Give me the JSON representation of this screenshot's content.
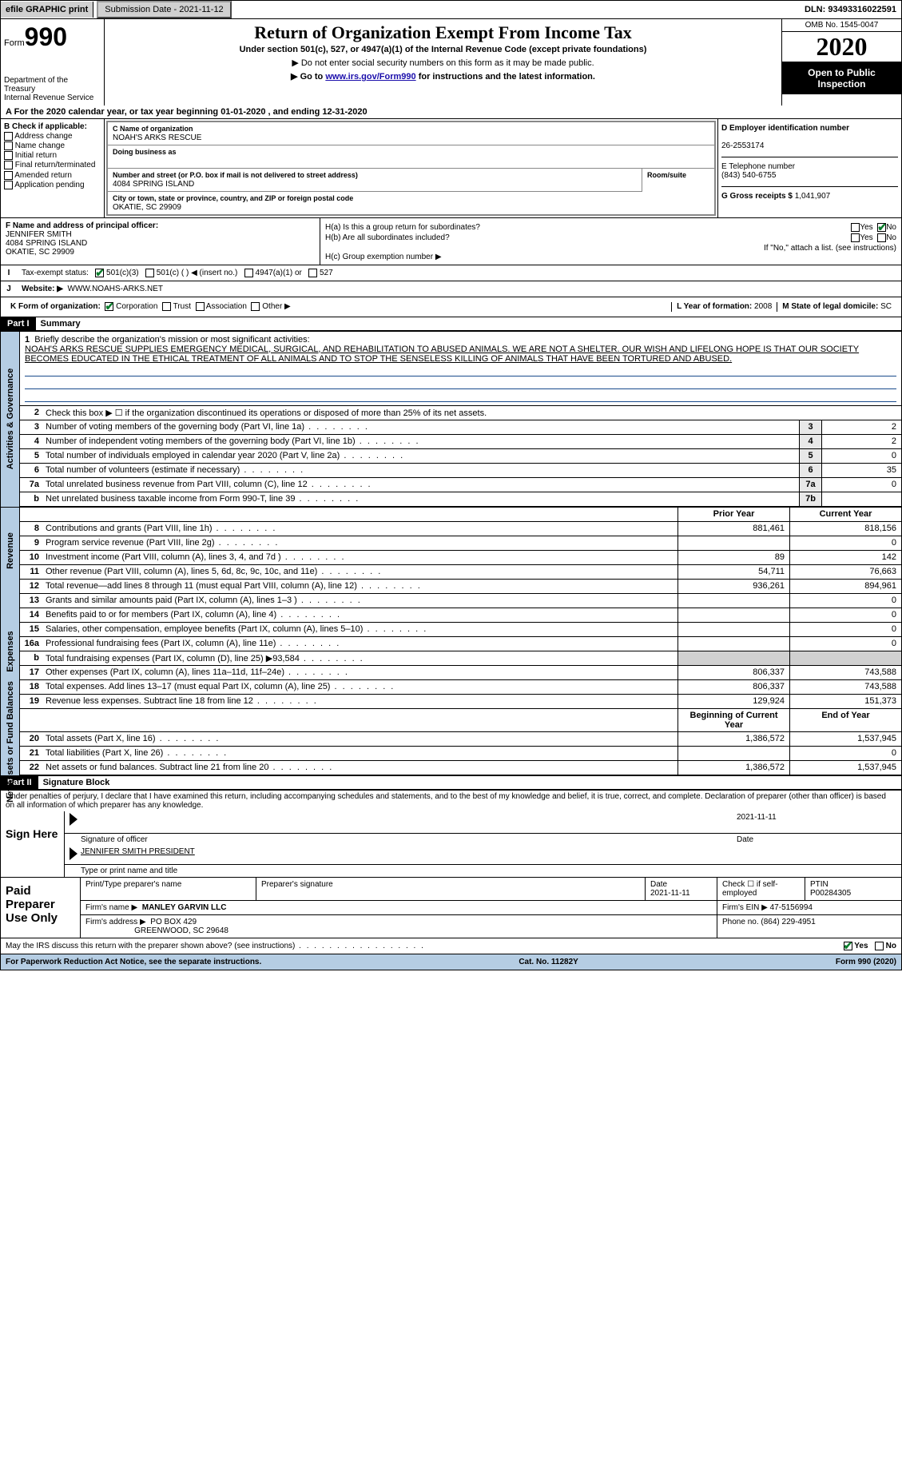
{
  "top_bar": {
    "efile": "efile GRAPHIC print",
    "submission_label": "Submission Date - 2021-11-12",
    "dln": "DLN: 93493316022591"
  },
  "header": {
    "form_word": "Form",
    "form_num": "990",
    "title": "Return of Organization Exempt From Income Tax",
    "subtitle": "Under section 501(c), 527, or 4947(a)(1) of the Internal Revenue Code (except private foundations)",
    "notice1": "▶ Do not enter social security numbers on this form as it may be made public.",
    "notice2_pre": "▶ Go to ",
    "notice2_link": "www.irs.gov/Form990",
    "notice2_post": " for instructions and the latest information.",
    "dept1": "Department of the Treasury",
    "dept2": "Internal Revenue Service",
    "omb": "OMB No. 1545-0047",
    "year": "2020",
    "open_public": "Open to Public Inspection"
  },
  "row_a": "A For the 2020 calendar year, or tax year beginning 01-01-2020   , and ending 12-31-2020",
  "section_b": {
    "label": "B Check if applicable:",
    "items": [
      "Address change",
      "Name change",
      "Initial return",
      "Final return/terminated",
      "Amended return",
      "Application pending"
    ]
  },
  "section_c": {
    "label": "C Name of organization",
    "org_name": "NOAH'S ARKS RESCUE",
    "dba_label": "Doing business as",
    "addr_label": "Number and street (or P.O. box if mail is not delivered to street address)",
    "addr": "4084 SPRING ISLAND",
    "room_label": "Room/suite",
    "city_label": "City or town, state or province, country, and ZIP or foreign postal code",
    "city": "OKATIE, SC  29909"
  },
  "section_d": {
    "label": "D Employer identification number",
    "ein": "26-2553174",
    "e_label": "E Telephone number",
    "phone": "(843) 540-6755",
    "g_label": "G Gross receipts $",
    "g_val": "1,041,907"
  },
  "section_f": {
    "label": "F Name and address of principal officer:",
    "name": "JENNIFER SMITH",
    "addr1": "4084 SPRING ISLAND",
    "addr2": "OKATIE, SC  29909"
  },
  "section_h": {
    "ha_label": "H(a)  Is this a group return for subordinates?",
    "hb_label": "H(b)  Are all subordinates included?",
    "hb_note": "If \"No,\" attach a list. (see instructions)",
    "hc_label": "H(c)  Group exemption number ▶",
    "yes": "Yes",
    "no": "No"
  },
  "row_i": {
    "label": "Tax-exempt status:",
    "opts": [
      "501(c)(3)",
      "501(c) (   ) ◀ (insert no.)",
      "4947(a)(1) or",
      "527"
    ]
  },
  "row_j": {
    "label": "Website: ▶",
    "val": "WWW.NOAHS-ARKS.NET"
  },
  "row_k": {
    "label": "K Form of organization:",
    "opts": [
      "Corporation",
      "Trust",
      "Association",
      "Other ▶"
    ]
  },
  "row_l": {
    "label": "L Year of formation:",
    "val": "2008"
  },
  "row_m": {
    "label": "M State of legal domicile:",
    "val": "SC"
  },
  "part1": {
    "num": "Part I",
    "title": "Summary"
  },
  "mission": {
    "num": "1",
    "label": "Briefly describe the organization's mission or most significant activities:",
    "text": "NOAH'S ARKS RESCUE SUPPLIES EMERGENCY MEDICAL, SURGICAL, AND REHABILITATION TO ABUSED ANIMALS. WE ARE NOT A SHELTER. OUR WISH AND LIFELONG HOPE IS THAT OUR SOCIETY BECOMES EDUCATED IN THE ETHICAL TREATMENT OF ALL ANIMALS AND TO STOP THE SENSELESS KILLING OF ANIMALS THAT HAVE BEEN TORTURED AND ABUSED."
  },
  "gov_lines": [
    {
      "n": "2",
      "t": "Check this box ▶ ☐ if the organization discontinued its operations or disposed of more than 25% of its net assets.",
      "box": "",
      "v": ""
    },
    {
      "n": "3",
      "t": "Number of voting members of the governing body (Part VI, line 1a)",
      "box": "3",
      "v": "2"
    },
    {
      "n": "4",
      "t": "Number of independent voting members of the governing body (Part VI, line 1b)",
      "box": "4",
      "v": "2"
    },
    {
      "n": "5",
      "t": "Total number of individuals employed in calendar year 2020 (Part V, line 2a)",
      "box": "5",
      "v": "0"
    },
    {
      "n": "6",
      "t": "Total number of volunteers (estimate if necessary)",
      "box": "6",
      "v": "35"
    },
    {
      "n": "7a",
      "t": "Total unrelated business revenue from Part VIII, column (C), line 12",
      "box": "7a",
      "v": "0"
    },
    {
      "n": "b",
      "t": "Net unrelated business taxable income from Form 990-T, line 39",
      "box": "7b",
      "v": ""
    }
  ],
  "rev_hdr": {
    "prior": "Prior Year",
    "curr": "Current Year"
  },
  "rev_lines": [
    {
      "n": "8",
      "t": "Contributions and grants (Part VIII, line 1h)",
      "p": "881,461",
      "c": "818,156"
    },
    {
      "n": "9",
      "t": "Program service revenue (Part VIII, line 2g)",
      "p": "",
      "c": "0"
    },
    {
      "n": "10",
      "t": "Investment income (Part VIII, column (A), lines 3, 4, and 7d )",
      "p": "89",
      "c": "142"
    },
    {
      "n": "11",
      "t": "Other revenue (Part VIII, column (A), lines 5, 6d, 8c, 9c, 10c, and 11e)",
      "p": "54,711",
      "c": "76,663"
    },
    {
      "n": "12",
      "t": "Total revenue—add lines 8 through 11 (must equal Part VIII, column (A), line 12)",
      "p": "936,261",
      "c": "894,961"
    }
  ],
  "exp_lines": [
    {
      "n": "13",
      "t": "Grants and similar amounts paid (Part IX, column (A), lines 1–3 )",
      "p": "",
      "c": "0"
    },
    {
      "n": "14",
      "t": "Benefits paid to or for members (Part IX, column (A), line 4)",
      "p": "",
      "c": "0"
    },
    {
      "n": "15",
      "t": "Salaries, other compensation, employee benefits (Part IX, column (A), lines 5–10)",
      "p": "",
      "c": "0"
    },
    {
      "n": "16a",
      "t": "Professional fundraising fees (Part IX, column (A), line 11e)",
      "p": "",
      "c": "0"
    },
    {
      "n": "b",
      "t": "Total fundraising expenses (Part IX, column (D), line 25) ▶93,584",
      "p": "GREY",
      "c": "GREY"
    },
    {
      "n": "17",
      "t": "Other expenses (Part IX, column (A), lines 11a–11d, 11f–24e)",
      "p": "806,337",
      "c": "743,588"
    },
    {
      "n": "18",
      "t": "Total expenses. Add lines 13–17 (must equal Part IX, column (A), line 25)",
      "p": "806,337",
      "c": "743,588"
    },
    {
      "n": "19",
      "t": "Revenue less expenses. Subtract line 18 from line 12",
      "p": "129,924",
      "c": "151,373"
    }
  ],
  "net_hdr": {
    "b": "Beginning of Current Year",
    "e": "End of Year"
  },
  "net_lines": [
    {
      "n": "20",
      "t": "Total assets (Part X, line 16)",
      "p": "1,386,572",
      "c": "1,537,945"
    },
    {
      "n": "21",
      "t": "Total liabilities (Part X, line 26)",
      "p": "",
      "c": "0"
    },
    {
      "n": "22",
      "t": "Net assets or fund balances. Subtract line 21 from line 20",
      "p": "1,386,572",
      "c": "1,537,945"
    }
  ],
  "side_labels": {
    "gov": "Activities & Governance",
    "rev": "Revenue",
    "exp": "Expenses",
    "net": "Net Assets or Fund Balances"
  },
  "part2": {
    "num": "Part II",
    "title": "Signature Block"
  },
  "sig_decl": "Under penalties of perjury, I declare that I have examined this return, including accompanying schedules and statements, and to the best of my knowledge and belief, it is true, correct, and complete. Declaration of preparer (other than officer) is based on all information of which preparer has any knowledge.",
  "sign_here": "Sign Here",
  "sig": {
    "sig_lbl": "Signature of officer",
    "date_lbl": "Date",
    "date_val": "2021-11-11",
    "name_val": "JENNIFER SMITH PRESIDENT",
    "name_lbl": "Type or print name and title"
  },
  "prep": {
    "title": "Paid Preparer Use Only",
    "r1": {
      "a": "Print/Type preparer's name",
      "b": "Preparer's signature",
      "c": "Date",
      "cv": "2021-11-11",
      "d": "Check ☐ if self-employed",
      "e": "PTIN",
      "ev": "P00284305"
    },
    "r2": {
      "a": "Firm's name    ▶",
      "av": "MANLEY GARVIN LLC",
      "b": "Firm's EIN ▶",
      "bv": "47-5156994"
    },
    "r3": {
      "a": "Firm's address ▶",
      "av": "PO BOX 429",
      "av2": "GREENWOOD, SC  29648",
      "b": "Phone no.",
      "bv": "(864) 229-4951"
    }
  },
  "discuss": {
    "q": "May the IRS discuss this return with the preparer shown above? (see instructions)",
    "yes": "Yes",
    "no": "No"
  },
  "footer": {
    "left": "For Paperwork Reduction Act Notice, see the separate instructions.",
    "mid": "Cat. No. 11282Y",
    "right": "Form 990 (2020)"
  }
}
